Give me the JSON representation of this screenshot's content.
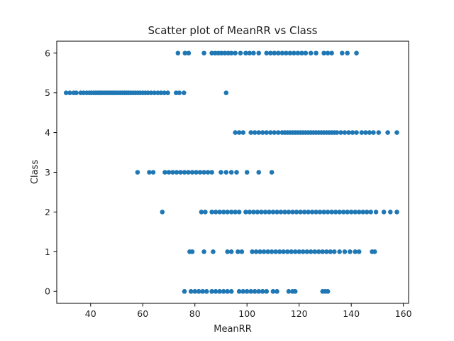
{
  "chart_data": {
    "type": "scatter",
    "title": "Scatter plot of MeanRR vs Class",
    "xlabel": "MeanRR",
    "ylabel": "Class",
    "xlim": [
      27,
      162
    ],
    "ylim": [
      -0.3,
      6.3
    ],
    "x_ticks": [
      40,
      60,
      80,
      100,
      120,
      140,
      160
    ],
    "y_ticks": [
      0,
      1,
      2,
      3,
      4,
      5,
      6
    ],
    "grid": false,
    "marker_color": "#1f77b4",
    "points": [
      {
        "x": 30.6,
        "y": 5
      },
      {
        "x": 32.0,
        "y": 5
      },
      {
        "x": 33.5,
        "y": 5
      },
      {
        "x": 34.5,
        "y": 5
      },
      {
        "x": 36.2,
        "y": 5
      },
      {
        "x": 37.3,
        "y": 5
      },
      {
        "x": 38.5,
        "y": 5
      },
      {
        "x": 39.5,
        "y": 5
      },
      {
        "x": 40.3,
        "y": 5
      },
      {
        "x": 41.2,
        "y": 5
      },
      {
        "x": 42.0,
        "y": 5
      },
      {
        "x": 42.8,
        "y": 5
      },
      {
        "x": 43.6,
        "y": 5
      },
      {
        "x": 44.3,
        "y": 5
      },
      {
        "x": 45.1,
        "y": 5
      },
      {
        "x": 45.8,
        "y": 5
      },
      {
        "x": 46.6,
        "y": 5
      },
      {
        "x": 47.4,
        "y": 5
      },
      {
        "x": 48.2,
        "y": 5
      },
      {
        "x": 49.0,
        "y": 5
      },
      {
        "x": 49.8,
        "y": 5
      },
      {
        "x": 50.6,
        "y": 5
      },
      {
        "x": 51.4,
        "y": 5
      },
      {
        "x": 52.2,
        "y": 5
      },
      {
        "x": 53.0,
        "y": 5
      },
      {
        "x": 53.8,
        "y": 5
      },
      {
        "x": 54.6,
        "y": 5
      },
      {
        "x": 55.4,
        "y": 5
      },
      {
        "x": 56.3,
        "y": 5
      },
      {
        "x": 57.2,
        "y": 5
      },
      {
        "x": 58.1,
        "y": 5
      },
      {
        "x": 59.0,
        "y": 5
      },
      {
        "x": 60.0,
        "y": 5
      },
      {
        "x": 61.0,
        "y": 5
      },
      {
        "x": 62.0,
        "y": 5
      },
      {
        "x": 63.2,
        "y": 5
      },
      {
        "x": 64.5,
        "y": 5
      },
      {
        "x": 65.8,
        "y": 5
      },
      {
        "x": 67.0,
        "y": 5
      },
      {
        "x": 68.3,
        "y": 5
      },
      {
        "x": 69.6,
        "y": 5
      },
      {
        "x": 72.8,
        "y": 5
      },
      {
        "x": 74.0,
        "y": 5
      },
      {
        "x": 75.8,
        "y": 5
      },
      {
        "x": 92.0,
        "y": 5
      },
      {
        "x": 73.5,
        "y": 6
      },
      {
        "x": 76.2,
        "y": 6
      },
      {
        "x": 77.6,
        "y": 6
      },
      {
        "x": 83.5,
        "y": 6
      },
      {
        "x": 86.5,
        "y": 6
      },
      {
        "x": 87.8,
        "y": 6
      },
      {
        "x": 89.0,
        "y": 6
      },
      {
        "x": 90.2,
        "y": 6
      },
      {
        "x": 91.5,
        "y": 6
      },
      {
        "x": 92.8,
        "y": 6
      },
      {
        "x": 94.0,
        "y": 6
      },
      {
        "x": 95.5,
        "y": 6
      },
      {
        "x": 97.5,
        "y": 6
      },
      {
        "x": 99.5,
        "y": 6
      },
      {
        "x": 101.0,
        "y": 6
      },
      {
        "x": 102.5,
        "y": 6
      },
      {
        "x": 104.5,
        "y": 6
      },
      {
        "x": 107.5,
        "y": 6
      },
      {
        "x": 109.0,
        "y": 6
      },
      {
        "x": 110.5,
        "y": 6
      },
      {
        "x": 112.0,
        "y": 6
      },
      {
        "x": 113.5,
        "y": 6
      },
      {
        "x": 115.0,
        "y": 6
      },
      {
        "x": 116.5,
        "y": 6
      },
      {
        "x": 118.0,
        "y": 6
      },
      {
        "x": 119.5,
        "y": 6
      },
      {
        "x": 121.0,
        "y": 6
      },
      {
        "x": 122.5,
        "y": 6
      },
      {
        "x": 124.5,
        "y": 6
      },
      {
        "x": 126.5,
        "y": 6
      },
      {
        "x": 129.5,
        "y": 6
      },
      {
        "x": 131.0,
        "y": 6
      },
      {
        "x": 132.5,
        "y": 6
      },
      {
        "x": 136.5,
        "y": 6
      },
      {
        "x": 138.5,
        "y": 6
      },
      {
        "x": 142.0,
        "y": 6
      },
      {
        "x": 95.5,
        "y": 4
      },
      {
        "x": 97.0,
        "y": 4
      },
      {
        "x": 98.5,
        "y": 4
      },
      {
        "x": 101.5,
        "y": 4
      },
      {
        "x": 103.0,
        "y": 4
      },
      {
        "x": 104.5,
        "y": 4
      },
      {
        "x": 106.0,
        "y": 4
      },
      {
        "x": 107.5,
        "y": 4
      },
      {
        "x": 109.0,
        "y": 4
      },
      {
        "x": 110.5,
        "y": 4
      },
      {
        "x": 112.0,
        "y": 4
      },
      {
        "x": 113.5,
        "y": 4
      },
      {
        "x": 114.5,
        "y": 4
      },
      {
        "x": 115.5,
        "y": 4
      },
      {
        "x": 116.5,
        "y": 4
      },
      {
        "x": 117.5,
        "y": 4
      },
      {
        "x": 118.5,
        "y": 4
      },
      {
        "x": 119.5,
        "y": 4
      },
      {
        "x": 120.5,
        "y": 4
      },
      {
        "x": 121.5,
        "y": 4
      },
      {
        "x": 122.5,
        "y": 4
      },
      {
        "x": 123.5,
        "y": 4
      },
      {
        "x": 124.5,
        "y": 4
      },
      {
        "x": 125.5,
        "y": 4
      },
      {
        "x": 126.5,
        "y": 4
      },
      {
        "x": 127.5,
        "y": 4
      },
      {
        "x": 128.5,
        "y": 4
      },
      {
        "x": 129.5,
        "y": 4
      },
      {
        "x": 130.5,
        "y": 4
      },
      {
        "x": 131.5,
        "y": 4
      },
      {
        "x": 132.5,
        "y": 4
      },
      {
        "x": 133.5,
        "y": 4
      },
      {
        "x": 134.5,
        "y": 4
      },
      {
        "x": 136.0,
        "y": 4
      },
      {
        "x": 137.5,
        "y": 4
      },
      {
        "x": 139.0,
        "y": 4
      },
      {
        "x": 140.5,
        "y": 4
      },
      {
        "x": 142.0,
        "y": 4
      },
      {
        "x": 144.0,
        "y": 4
      },
      {
        "x": 145.5,
        "y": 4
      },
      {
        "x": 147.0,
        "y": 4
      },
      {
        "x": 148.5,
        "y": 4
      },
      {
        "x": 150.5,
        "y": 4
      },
      {
        "x": 154.0,
        "y": 4
      },
      {
        "x": 157.5,
        "y": 4
      },
      {
        "x": 58.0,
        "y": 3
      },
      {
        "x": 62.5,
        "y": 3
      },
      {
        "x": 64.0,
        "y": 3
      },
      {
        "x": 68.5,
        "y": 3
      },
      {
        "x": 70.0,
        "y": 3
      },
      {
        "x": 71.5,
        "y": 3
      },
      {
        "x": 73.0,
        "y": 3
      },
      {
        "x": 74.5,
        "y": 3
      },
      {
        "x": 76.0,
        "y": 3
      },
      {
        "x": 77.5,
        "y": 3
      },
      {
        "x": 79.0,
        "y": 3
      },
      {
        "x": 80.5,
        "y": 3
      },
      {
        "x": 82.0,
        "y": 3
      },
      {
        "x": 83.5,
        "y": 3
      },
      {
        "x": 85.0,
        "y": 3
      },
      {
        "x": 86.5,
        "y": 3
      },
      {
        "x": 90.0,
        "y": 3
      },
      {
        "x": 92.0,
        "y": 3
      },
      {
        "x": 94.0,
        "y": 3
      },
      {
        "x": 96.0,
        "y": 3
      },
      {
        "x": 100.0,
        "y": 3
      },
      {
        "x": 104.5,
        "y": 3
      },
      {
        "x": 109.5,
        "y": 3
      },
      {
        "x": 67.5,
        "y": 2
      },
      {
        "x": 82.5,
        "y": 2
      },
      {
        "x": 84.0,
        "y": 2
      },
      {
        "x": 86.5,
        "y": 2
      },
      {
        "x": 88.0,
        "y": 2
      },
      {
        "x": 89.5,
        "y": 2
      },
      {
        "x": 91.0,
        "y": 2
      },
      {
        "x": 92.5,
        "y": 2
      },
      {
        "x": 94.0,
        "y": 2
      },
      {
        "x": 95.5,
        "y": 2
      },
      {
        "x": 97.0,
        "y": 2
      },
      {
        "x": 99.5,
        "y": 2
      },
      {
        "x": 101.0,
        "y": 2
      },
      {
        "x": 102.5,
        "y": 2
      },
      {
        "x": 104.0,
        "y": 2
      },
      {
        "x": 105.5,
        "y": 2
      },
      {
        "x": 107.0,
        "y": 2
      },
      {
        "x": 108.5,
        "y": 2
      },
      {
        "x": 110.0,
        "y": 2
      },
      {
        "x": 111.5,
        "y": 2
      },
      {
        "x": 113.0,
        "y": 2
      },
      {
        "x": 114.5,
        "y": 2
      },
      {
        "x": 116.0,
        "y": 2
      },
      {
        "x": 117.5,
        "y": 2
      },
      {
        "x": 119.0,
        "y": 2
      },
      {
        "x": 120.5,
        "y": 2
      },
      {
        "x": 122.0,
        "y": 2
      },
      {
        "x": 123.5,
        "y": 2
      },
      {
        "x": 125.0,
        "y": 2
      },
      {
        "x": 126.5,
        "y": 2
      },
      {
        "x": 128.0,
        "y": 2
      },
      {
        "x": 129.5,
        "y": 2
      },
      {
        "x": 131.0,
        "y": 2
      },
      {
        "x": 132.5,
        "y": 2
      },
      {
        "x": 134.0,
        "y": 2
      },
      {
        "x": 135.5,
        "y": 2
      },
      {
        "x": 137.0,
        "y": 2
      },
      {
        "x": 138.5,
        "y": 2
      },
      {
        "x": 140.0,
        "y": 2
      },
      {
        "x": 141.5,
        "y": 2
      },
      {
        "x": 143.0,
        "y": 2
      },
      {
        "x": 144.5,
        "y": 2
      },
      {
        "x": 146.0,
        "y": 2
      },
      {
        "x": 147.5,
        "y": 2
      },
      {
        "x": 149.5,
        "y": 2
      },
      {
        "x": 152.5,
        "y": 2
      },
      {
        "x": 155.0,
        "y": 2
      },
      {
        "x": 157.5,
        "y": 2
      },
      {
        "x": 78.0,
        "y": 1
      },
      {
        "x": 79.0,
        "y": 1
      },
      {
        "x": 83.5,
        "y": 1
      },
      {
        "x": 87.0,
        "y": 1
      },
      {
        "x": 92.5,
        "y": 1
      },
      {
        "x": 94.0,
        "y": 1
      },
      {
        "x": 96.5,
        "y": 1
      },
      {
        "x": 98.0,
        "y": 1
      },
      {
        "x": 102.0,
        "y": 1
      },
      {
        "x": 103.5,
        "y": 1
      },
      {
        "x": 105.0,
        "y": 1
      },
      {
        "x": 106.5,
        "y": 1
      },
      {
        "x": 108.0,
        "y": 1
      },
      {
        "x": 109.5,
        "y": 1
      },
      {
        "x": 111.0,
        "y": 1
      },
      {
        "x": 112.5,
        "y": 1
      },
      {
        "x": 114.0,
        "y": 1
      },
      {
        "x": 115.5,
        "y": 1
      },
      {
        "x": 117.0,
        "y": 1
      },
      {
        "x": 118.5,
        "y": 1
      },
      {
        "x": 120.0,
        "y": 1
      },
      {
        "x": 121.5,
        "y": 1
      },
      {
        "x": 123.0,
        "y": 1
      },
      {
        "x": 124.5,
        "y": 1
      },
      {
        "x": 126.0,
        "y": 1
      },
      {
        "x": 127.5,
        "y": 1
      },
      {
        "x": 129.0,
        "y": 1
      },
      {
        "x": 130.5,
        "y": 1
      },
      {
        "x": 132.0,
        "y": 1
      },
      {
        "x": 133.5,
        "y": 1
      },
      {
        "x": 135.5,
        "y": 1
      },
      {
        "x": 137.5,
        "y": 1
      },
      {
        "x": 139.5,
        "y": 1
      },
      {
        "x": 141.5,
        "y": 1
      },
      {
        "x": 143.0,
        "y": 1
      },
      {
        "x": 148.0,
        "y": 1
      },
      {
        "x": 149.0,
        "y": 1
      },
      {
        "x": 76.0,
        "y": 0
      },
      {
        "x": 78.5,
        "y": 0
      },
      {
        "x": 80.0,
        "y": 0
      },
      {
        "x": 81.5,
        "y": 0
      },
      {
        "x": 83.0,
        "y": 0
      },
      {
        "x": 84.5,
        "y": 0
      },
      {
        "x": 86.5,
        "y": 0
      },
      {
        "x": 88.0,
        "y": 0
      },
      {
        "x": 89.5,
        "y": 0
      },
      {
        "x": 91.0,
        "y": 0
      },
      {
        "x": 92.5,
        "y": 0
      },
      {
        "x": 94.0,
        "y": 0
      },
      {
        "x": 97.0,
        "y": 0
      },
      {
        "x": 98.5,
        "y": 0
      },
      {
        "x": 100.0,
        "y": 0
      },
      {
        "x": 101.5,
        "y": 0
      },
      {
        "x": 103.0,
        "y": 0
      },
      {
        "x": 104.5,
        "y": 0
      },
      {
        "x": 106.0,
        "y": 0
      },
      {
        "x": 107.5,
        "y": 0
      },
      {
        "x": 110.0,
        "y": 0
      },
      {
        "x": 111.5,
        "y": 0
      },
      {
        "x": 116.0,
        "y": 0
      },
      {
        "x": 117.5,
        "y": 0
      },
      {
        "x": 118.5,
        "y": 0
      },
      {
        "x": 129.0,
        "y": 0
      },
      {
        "x": 130.0,
        "y": 0
      },
      {
        "x": 131.0,
        "y": 0
      }
    ]
  }
}
